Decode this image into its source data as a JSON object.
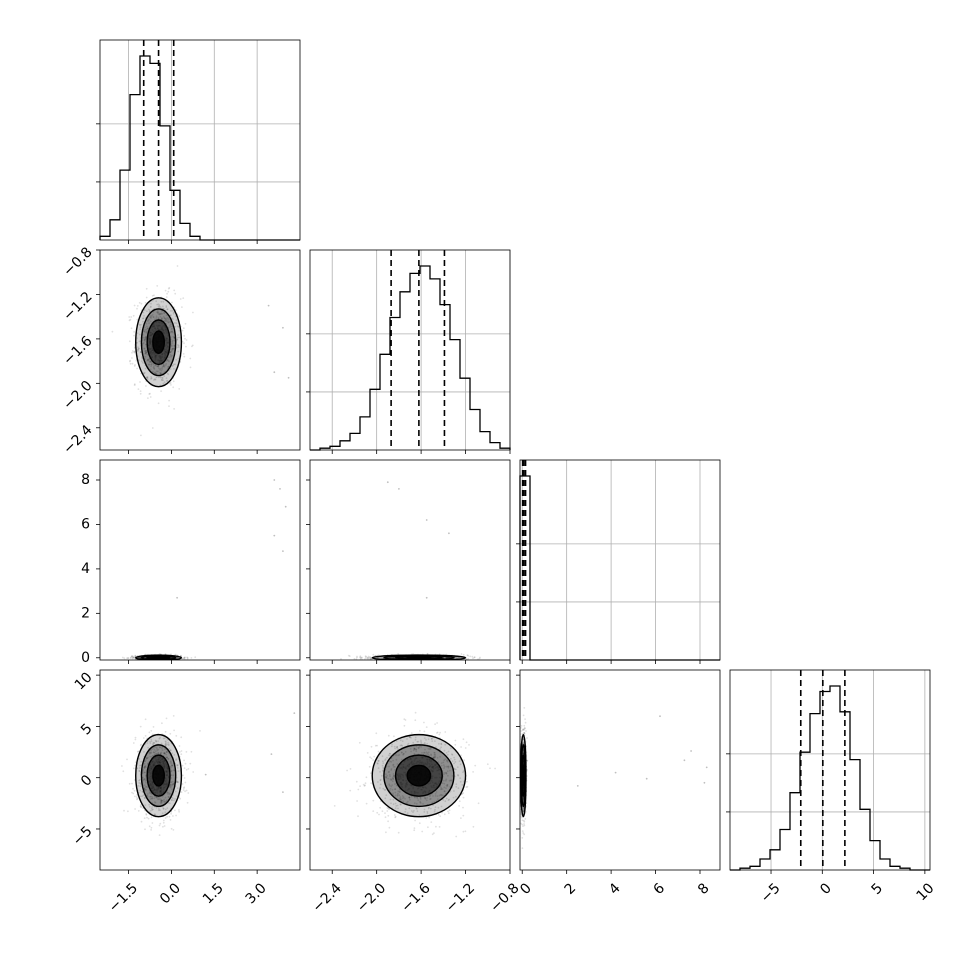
{
  "chart_data": {
    "type": "corner",
    "title": "",
    "grid": true,
    "params": [
      {
        "range": [
          -2.5,
          4.5
        ],
        "ticks": [
          -1.5,
          0.0,
          1.5,
          3.0
        ],
        "tick_labels": [
          "−1.5",
          "0.0",
          "1.5",
          "3.0"
        ],
        "quantiles": [
          -0.97,
          -0.45,
          0.08
        ]
      },
      {
        "range": [
          -2.6,
          -0.8
        ],
        "ticks": [
          -2.4,
          -2.0,
          -1.6,
          -1.2,
          -0.8
        ],
        "tick_labels": [
          "−2.4",
          "−2.0",
          "−1.6",
          "−1.2",
          "−0.8"
        ],
        "quantiles": [
          -1.87,
          -1.62,
          -1.39
        ]
      },
      {
        "range": [
          -0.1,
          8.9
        ],
        "ticks": [
          0,
          2,
          4,
          6,
          8
        ],
        "tick_labels": [
          "0",
          "2",
          "4",
          "6",
          "8"
        ],
        "quantiles": [
          0.02,
          0.08,
          0.15
        ]
      },
      {
        "range": [
          -9,
          10.5
        ],
        "ticks": [
          -5,
          0,
          5,
          10
        ],
        "tick_labels": [
          "−5",
          "0",
          "5",
          "10"
        ],
        "quantiles": [
          -2.1,
          0.05,
          2.2
        ]
      }
    ],
    "histograms": [
      {
        "param": 0,
        "bins": [
          -2.5,
          -2.15,
          -1.8,
          -1.45,
          -1.1,
          -0.75,
          -0.4,
          -0.05,
          0.3,
          0.65,
          1.0,
          1.35,
          1.7,
          2.05,
          2.4,
          2.75,
          3.1,
          3.45,
          3.8,
          4.15,
          4.5
        ],
        "counts": [
          0.02,
          0.11,
          0.38,
          0.79,
          1.0,
          0.96,
          0.62,
          0.27,
          0.09,
          0.02,
          0.0,
          0.0,
          0.0,
          0.0,
          0.0,
          0.0,
          0.0,
          0.0,
          0.0,
          0.0
        ]
      },
      {
        "param": 1,
        "bins": [
          -2.6,
          -2.51,
          -2.42,
          -2.33,
          -2.24,
          -2.15,
          -2.06,
          -1.97,
          -1.88,
          -1.79,
          -1.7,
          -1.61,
          -1.52,
          -1.43,
          -1.34,
          -1.25,
          -1.16,
          -1.07,
          -0.98,
          -0.89,
          -0.8
        ],
        "counts": [
          0.0,
          0.01,
          0.02,
          0.05,
          0.09,
          0.18,
          0.33,
          0.52,
          0.72,
          0.86,
          0.96,
          1.0,
          0.93,
          0.79,
          0.6,
          0.39,
          0.22,
          0.1,
          0.04,
          0.01
        ]
      },
      {
        "param": 2,
        "bins": [
          -0.1,
          0.35,
          0.8,
          1.25,
          1.7,
          2.15,
          2.6,
          3.05,
          3.5,
          3.95,
          4.4,
          4.85,
          5.3,
          5.75,
          6.2,
          6.65,
          7.1,
          7.55,
          8.0,
          8.45,
          8.9
        ],
        "counts": [
          1.0,
          0.0,
          0.0,
          0.0,
          0.0,
          0.0,
          0.0,
          0.0,
          0.0,
          0.0,
          0.0,
          0.0,
          0.0,
          0.0,
          0.0,
          0.0,
          0.0,
          0.0,
          0.0,
          0.0
        ]
      },
      {
        "param": 3,
        "bins": [
          -9.0,
          -8.025,
          -7.05,
          -6.075,
          -5.1,
          -4.125,
          -3.15,
          -2.175,
          -1.2,
          -0.225,
          0.75,
          1.725,
          2.7,
          3.675,
          4.65,
          5.625,
          6.6,
          7.575,
          8.55,
          9.525,
          10.5
        ],
        "counts": [
          0.0,
          0.01,
          0.02,
          0.06,
          0.11,
          0.22,
          0.42,
          0.64,
          0.85,
          0.97,
          1.0,
          0.86,
          0.6,
          0.33,
          0.16,
          0.06,
          0.02,
          0.01,
          0.0,
          0.0
        ]
      }
    ],
    "scatter_panels": [
      {
        "x": 0,
        "y": 1,
        "center": [
          -0.45,
          -1.63
        ],
        "sd": [
          0.4,
          0.2
        ],
        "outliers": [
          [
            3.4,
            -1.3
          ],
          [
            3.9,
            -1.5
          ],
          [
            3.6,
            -1.9
          ],
          [
            4.1,
            -1.95
          ]
        ]
      },
      {
        "x": 0,
        "y": 2,
        "center": [
          -0.45,
          0.0
        ],
        "sd": [
          0.4,
          0.06
        ],
        "outliers": [
          [
            3.6,
            8.0
          ],
          [
            3.8,
            7.6
          ],
          [
            4.0,
            6.8
          ],
          [
            3.6,
            5.5
          ],
          [
            3.9,
            4.8
          ],
          [
            0.2,
            2.7
          ]
        ]
      },
      {
        "x": 0,
        "y": 3,
        "center": [
          -0.45,
          0.2
        ],
        "sd": [
          0.4,
          2.0
        ],
        "outliers": [
          [
            3.5,
            2.3
          ],
          [
            3.9,
            -1.4
          ],
          [
            4.3,
            6.3
          ],
          [
            1.2,
            0.3
          ]
        ]
      },
      {
        "x": 1,
        "y": 2,
        "center": [
          -1.62,
          0.0
        ],
        "sd": [
          0.21,
          0.06
        ],
        "outliers": [
          [
            -1.9,
            7.9
          ],
          [
            -1.8,
            7.6
          ],
          [
            -1.55,
            6.2
          ],
          [
            -1.35,
            5.6
          ],
          [
            -1.55,
            2.7
          ]
        ]
      },
      {
        "x": 1,
        "y": 3,
        "center": [
          -1.62,
          0.2
        ],
        "sd": [
          0.21,
          2.0
        ],
        "outliers": []
      },
      {
        "x": 2,
        "y": 3,
        "center": [
          0.05,
          0.2
        ],
        "sd": [
          0.06,
          2.0
        ],
        "outliers": [
          [
            2.5,
            -0.8
          ],
          [
            4.2,
            0.5
          ],
          [
            5.6,
            -0.1
          ],
          [
            6.2,
            6.0
          ],
          [
            7.3,
            1.7
          ],
          [
            7.6,
            2.6
          ],
          [
            8.2,
            -0.5
          ],
          [
            8.3,
            1.0
          ]
        ]
      }
    ]
  }
}
